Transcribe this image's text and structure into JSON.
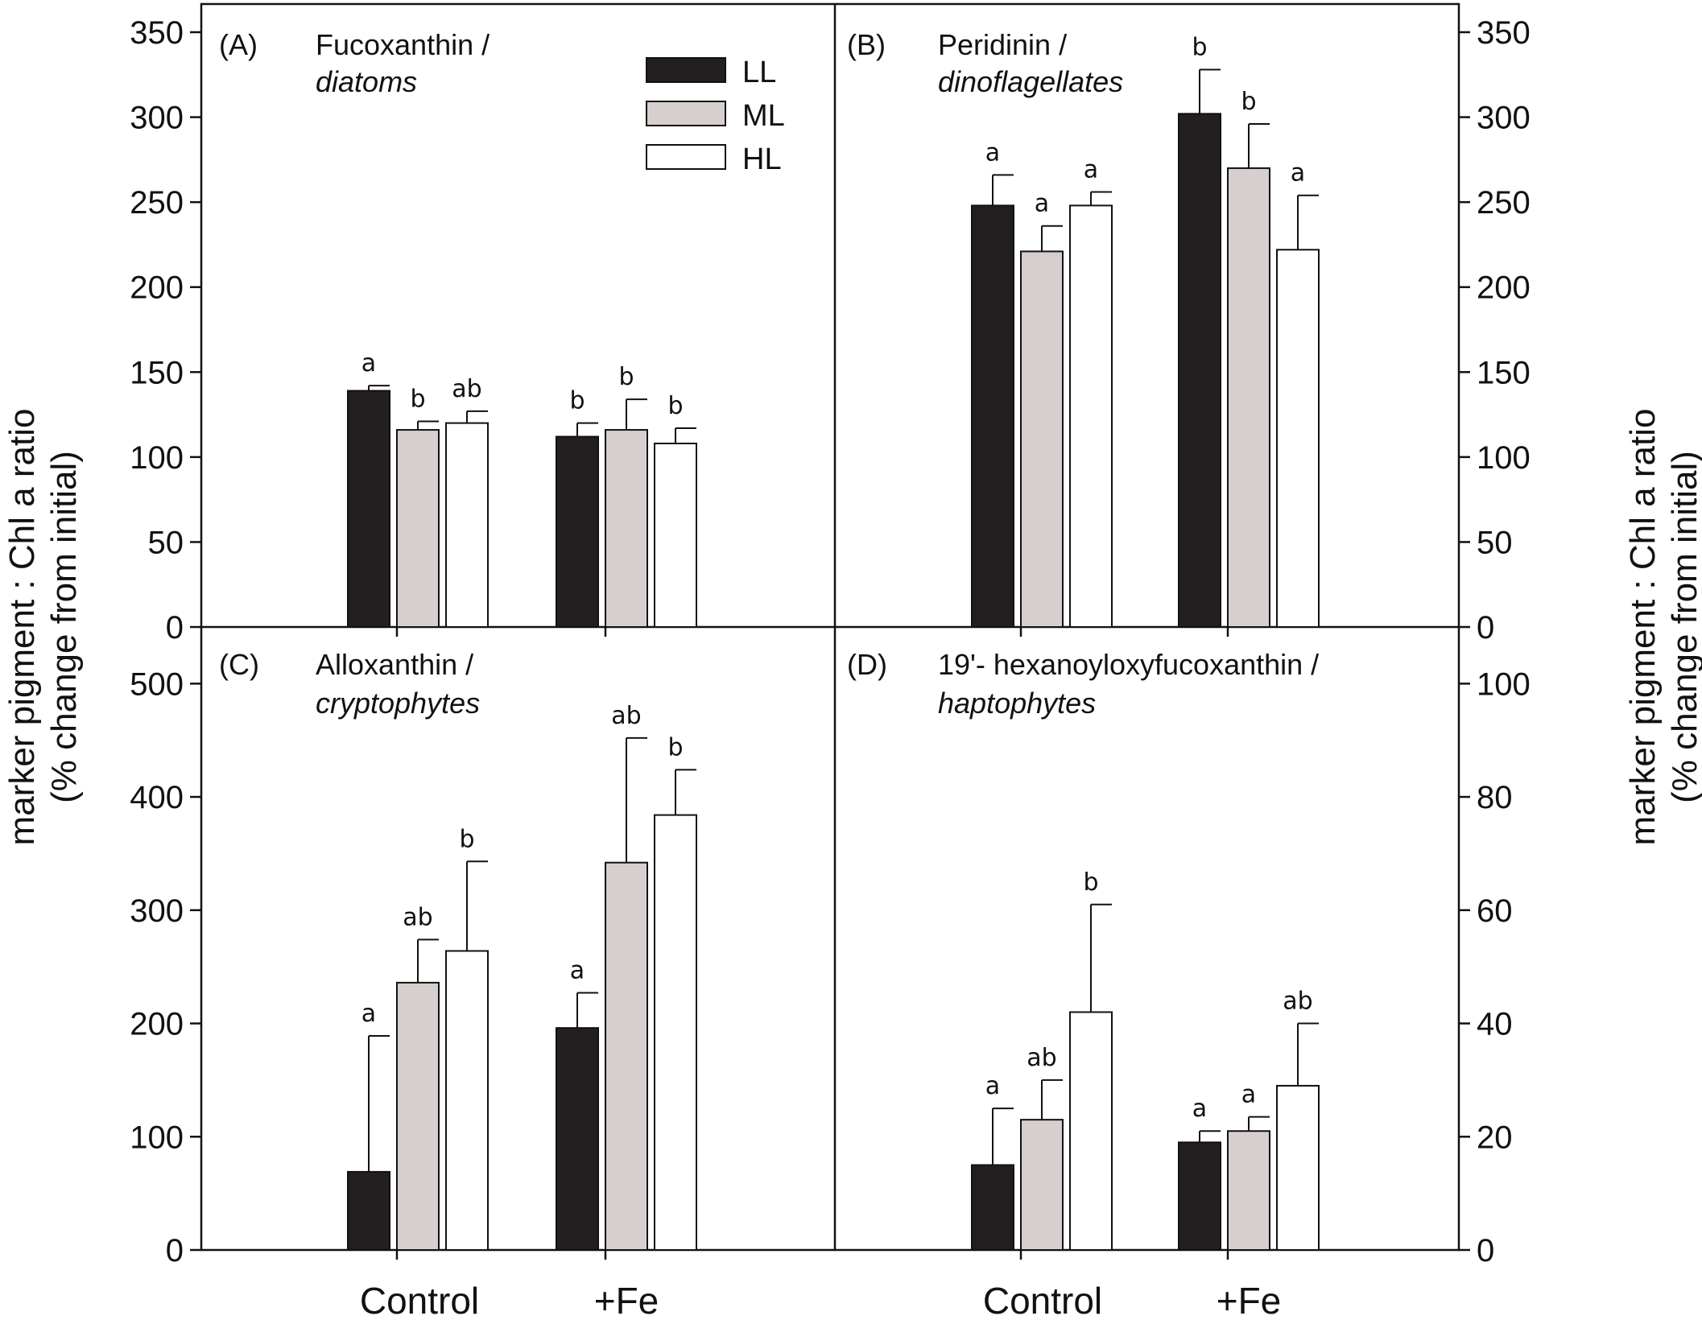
{
  "chart_data": {
    "type": "bar",
    "ylabel": {
      "line1": "marker pigment : Chl a ratio",
      "line2": "(% change from initial)"
    },
    "categories": [
      "Control",
      "+Fe"
    ],
    "legend": {
      "position": "top-right of panel A",
      "entries": [
        {
          "name": "LL",
          "color": "#231f20"
        },
        {
          "name": "ML",
          "color": "#d6cfcd"
        },
        {
          "name": "HL",
          "color": "#ffffff"
        }
      ]
    },
    "panels": [
      {
        "id": "A",
        "label": "(A)",
        "title": "Fucoxanthin /",
        "subtitle": "diatoms",
        "y_axis_side": "left",
        "ylim": [
          0,
          350
        ],
        "yticks": [
          0,
          50,
          100,
          150,
          200,
          250,
          300,
          350
        ],
        "series": [
          {
            "name": "LL",
            "values": [
              139,
              112
            ],
            "errors": [
              3,
              8
            ],
            "letters": [
              "a",
              "b"
            ]
          },
          {
            "name": "ML",
            "values": [
              116,
              116
            ],
            "errors": [
              5,
              18
            ],
            "letters": [
              "b",
              "b"
            ]
          },
          {
            "name": "HL",
            "values": [
              120,
              108
            ],
            "errors": [
              7,
              9
            ],
            "letters": [
              "ab",
              "b"
            ]
          }
        ]
      },
      {
        "id": "B",
        "label": "(B)",
        "title": "Peridinin /",
        "subtitle": "dinoflagellates",
        "y_axis_side": "right",
        "ylim": [
          0,
          350
        ],
        "yticks": [
          0,
          50,
          100,
          150,
          200,
          250,
          300,
          350
        ],
        "series": [
          {
            "name": "LL",
            "values": [
              248,
              302
            ],
            "errors": [
              18,
              26
            ],
            "letters": [
              "a",
              "b"
            ]
          },
          {
            "name": "ML",
            "values": [
              221,
              270
            ],
            "errors": [
              15,
              26
            ],
            "letters": [
              "a",
              "b"
            ]
          },
          {
            "name": "HL",
            "values": [
              248,
              222
            ],
            "errors": [
              8,
              32
            ],
            "letters": [
              "a",
              "a"
            ]
          }
        ]
      },
      {
        "id": "C",
        "label": "(C)",
        "title": "Alloxanthin /",
        "subtitle": "cryptophytes",
        "y_axis_side": "left",
        "ylim": [
          0,
          550
        ],
        "yticks": [
          0,
          100,
          200,
          300,
          400,
          500
        ],
        "series": [
          {
            "name": "LL",
            "values": [
              69,
              196
            ],
            "errors": [
              120,
              31
            ],
            "letters": [
              "a",
              "a"
            ]
          },
          {
            "name": "ML",
            "values": [
              236,
              342
            ],
            "errors": [
              38,
              110
            ],
            "letters": [
              "ab",
              "ab"
            ]
          },
          {
            "name": "HL",
            "values": [
              264,
              384
            ],
            "errors": [
              79,
              40
            ],
            "letters": [
              "b",
              "b"
            ]
          }
        ]
      },
      {
        "id": "D",
        "label": "(D)",
        "title": "19'- hexanoyloxyfucoxanthin /",
        "subtitle": "haptophytes",
        "y_axis_side": "right",
        "ylim": [
          0,
          110
        ],
        "yticks": [
          0,
          20,
          40,
          60,
          80,
          100
        ],
        "series": [
          {
            "name": "LL",
            "values": [
              15,
              19
            ],
            "errors": [
              10,
              2
            ],
            "letters": [
              "a",
              "a"
            ]
          },
          {
            "name": "ML",
            "values": [
              23,
              21
            ],
            "errors": [
              7,
              2.5
            ],
            "letters": [
              "ab",
              "a"
            ]
          },
          {
            "name": "HL",
            "values": [
              42,
              29
            ],
            "errors": [
              19,
              11
            ],
            "letters": [
              "b",
              "ab"
            ]
          }
        ]
      }
    ]
  }
}
